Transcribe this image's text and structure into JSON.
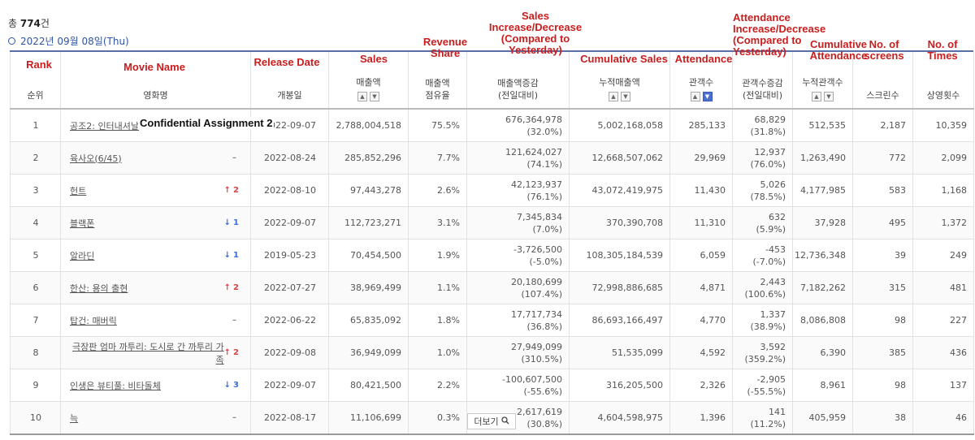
{
  "summary": {
    "total_prefix": "총 ",
    "total_count": "774",
    "total_suffix": "건",
    "date": "2022년 09월 08일(Thu)"
  },
  "annotations": {
    "rank": "Rank",
    "movie_name": "Movie Name",
    "release_date": "Release Date",
    "sales": "Sales",
    "revenue_share": "Revenue Share",
    "sales_change": "Sales Increase/Decrease (Compared to Yesterday)",
    "cumulative_sales": "Cumulative Sales",
    "attendance": "Attendance",
    "attendance_change": "Attendance Increase/Decrease (Compared to Yesterday)",
    "cumulative_attendance": "Cumulative Attendance",
    "screens": "No. of screens",
    "times": "No. of Times",
    "overlay": "Confidential Assignment 2"
  },
  "headers": {
    "rank": "순위",
    "movie": "영화명",
    "release": "개봉일",
    "sales": "매출액",
    "share_1": "매출액",
    "share_2": "점유율",
    "sales_change_1": "매출액증감",
    "sales_change_2": "(전일대비)",
    "cum_sales": "누적매출액",
    "attendance": "관객수",
    "att_change_1": "관객수증감",
    "att_change_2": "(전일대비)",
    "cum_att": "누적관객수",
    "screens": "스크린수",
    "times": "상영횟수"
  },
  "rows": [
    {
      "rank": "1",
      "movie": "공조2: 인터내셔날",
      "change_dir": "same",
      "change_num": "",
      "release": "2022-09-07",
      "sales": "2,788,004,518",
      "share": "75.5%",
      "sales_change": "676,364,978",
      "sales_change_pct": "(32.0%)",
      "cum_sales": "5,002,168,058",
      "attendance": "285,133",
      "att_change": "68,829",
      "att_change_pct": "(31.8%)",
      "cum_att": "512,535",
      "screens": "2,187",
      "times": "10,359"
    },
    {
      "rank": "2",
      "movie": "육사오(6/45)",
      "change_dir": "same",
      "change_num": "",
      "release": "2022-08-24",
      "sales": "285,852,296",
      "share": "7.7%",
      "sales_change": "121,624,027",
      "sales_change_pct": "(74.1%)",
      "cum_sales": "12,668,507,062",
      "attendance": "29,969",
      "att_change": "12,937",
      "att_change_pct": "(76.0%)",
      "cum_att": "1,263,490",
      "screens": "772",
      "times": "2,099"
    },
    {
      "rank": "3",
      "movie": "헌트",
      "change_dir": "up",
      "change_num": "2",
      "release": "2022-08-10",
      "sales": "97,443,278",
      "share": "2.6%",
      "sales_change": "42,123,937",
      "sales_change_pct": "(76.1%)",
      "cum_sales": "43,072,419,975",
      "attendance": "11,430",
      "att_change": "5,026",
      "att_change_pct": "(78.5%)",
      "cum_att": "4,177,985",
      "screens": "583",
      "times": "1,168"
    },
    {
      "rank": "4",
      "movie": "블랙폰",
      "change_dir": "down",
      "change_num": "1",
      "release": "2022-09-07",
      "sales": "112,723,271",
      "share": "3.1%",
      "sales_change": "7,345,834",
      "sales_change_pct": "(7.0%)",
      "cum_sales": "370,390,708",
      "attendance": "11,310",
      "att_change": "632",
      "att_change_pct": "(5.9%)",
      "cum_att": "37,928",
      "screens": "495",
      "times": "1,372"
    },
    {
      "rank": "5",
      "movie": "알라딘",
      "change_dir": "down",
      "change_num": "1",
      "release": "2019-05-23",
      "sales": "70,454,500",
      "share": "1.9%",
      "sales_change": "-3,726,500",
      "sales_change_pct": "(-5.0%)",
      "cum_sales": "108,305,184,539",
      "attendance": "6,059",
      "att_change": "-453",
      "att_change_pct": "(-7.0%)",
      "cum_att": "12,736,348",
      "screens": "39",
      "times": "249"
    },
    {
      "rank": "6",
      "movie": "한산: 용의 출현",
      "change_dir": "up",
      "change_num": "2",
      "release": "2022-07-27",
      "sales": "38,969,499",
      "share": "1.1%",
      "sales_change": "20,180,699",
      "sales_change_pct": "(107.4%)",
      "cum_sales": "72,998,886,685",
      "attendance": "4,871",
      "att_change": "2,443",
      "att_change_pct": "(100.6%)",
      "cum_att": "7,182,262",
      "screens": "315",
      "times": "481"
    },
    {
      "rank": "7",
      "movie": "탑건: 매버릭",
      "change_dir": "same",
      "change_num": "",
      "release": "2022-06-22",
      "sales": "65,835,092",
      "share": "1.8%",
      "sales_change": "17,717,734",
      "sales_change_pct": "(36.8%)",
      "cum_sales": "86,693,166,497",
      "attendance": "4,770",
      "att_change": "1,337",
      "att_change_pct": "(38.9%)",
      "cum_att": "8,086,808",
      "screens": "98",
      "times": "227"
    },
    {
      "rank": "8",
      "movie": "극장판 엄마 까투리: 도시로 간 까투리 가족",
      "change_dir": "up",
      "change_num": "2",
      "release": "2022-09-08",
      "sales": "36,949,099",
      "share": "1.0%",
      "sales_change": "27,949,099",
      "sales_change_pct": "(310.5%)",
      "cum_sales": "51,535,099",
      "attendance": "4,592",
      "att_change": "3,592",
      "att_change_pct": "(359.2%)",
      "cum_att": "6,390",
      "screens": "385",
      "times": "436"
    },
    {
      "rank": "9",
      "movie": "인생은 뷰티풀: 비타돌체",
      "change_dir": "down",
      "change_num": "3",
      "release": "2022-09-07",
      "sales": "80,421,500",
      "share": "2.2%",
      "sales_change": "-100,607,500",
      "sales_change_pct": "(-55.6%)",
      "cum_sales": "316,205,500",
      "attendance": "2,326",
      "att_change": "-2,905",
      "att_change_pct": "(-55.5%)",
      "cum_att": "8,961",
      "screens": "98",
      "times": "137"
    },
    {
      "rank": "10",
      "movie": "늑",
      "change_dir": "same",
      "change_num": "",
      "release": "2022-08-17",
      "sales": "11,106,699",
      "share": "0.3%",
      "sales_change": "2,617,619",
      "sales_change_pct": "(30.8%)",
      "cum_sales": "4,604,598,975",
      "attendance": "1,396",
      "att_change": "141",
      "att_change_pct": "(11.2%)",
      "cum_att": "405,959",
      "screens": "38",
      "times": "46"
    }
  ],
  "icons": {
    "sort_asc": "▲",
    "sort_desc": "▼",
    "rank_up": "↑",
    "rank_down": "↓",
    "rank_same": "–",
    "search": "🔍"
  },
  "more_button": "더보기"
}
